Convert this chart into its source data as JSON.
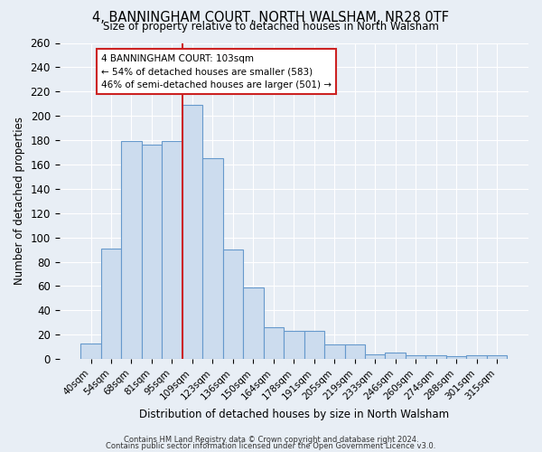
{
  "title": "4, BANNINGHAM COURT, NORTH WALSHAM, NR28 0TF",
  "subtitle": "Size of property relative to detached houses in North Walsham",
  "xlabel": "Distribution of detached houses by size in North Walsham",
  "ylabel": "Number of detached properties",
  "bar_labels": [
    "40sqm",
    "54sqm",
    "68sqm",
    "81sqm",
    "95sqm",
    "109sqm",
    "123sqm",
    "136sqm",
    "150sqm",
    "164sqm",
    "178sqm",
    "191sqm",
    "205sqm",
    "219sqm",
    "233sqm",
    "246sqm",
    "260sqm",
    "274sqm",
    "288sqm",
    "301sqm",
    "315sqm"
  ],
  "bar_values": [
    13,
    91,
    179,
    176,
    179,
    209,
    165,
    90,
    59,
    26,
    23,
    23,
    12,
    12,
    4,
    5,
    3,
    3,
    2,
    3,
    3
  ],
  "bar_color": "#ccdcee",
  "bar_edge_color": "#6699cc",
  "vline_index": 4.5,
  "vline_color": "#cc2222",
  "annotation_title": "4 BANNINGHAM COURT: 103sqm",
  "annotation_line1": "← 54% of detached houses are smaller (583)",
  "annotation_line2": "46% of semi-detached houses are larger (501) →",
  "ylim": [
    0,
    260
  ],
  "yticks": [
    0,
    20,
    40,
    60,
    80,
    100,
    120,
    140,
    160,
    180,
    200,
    220,
    240,
    260
  ],
  "footer1": "Contains HM Land Registry data © Crown copyright and database right 2024.",
  "footer2": "Contains public sector information licensed under the Open Government Licence v3.0.",
  "bg_color": "#e8eef5",
  "plot_bg_color": "#e8eef5",
  "grid_color": "#ffffff",
  "annotation_box_edge": "#cc2222",
  "annotation_box_face": "#ffffff"
}
